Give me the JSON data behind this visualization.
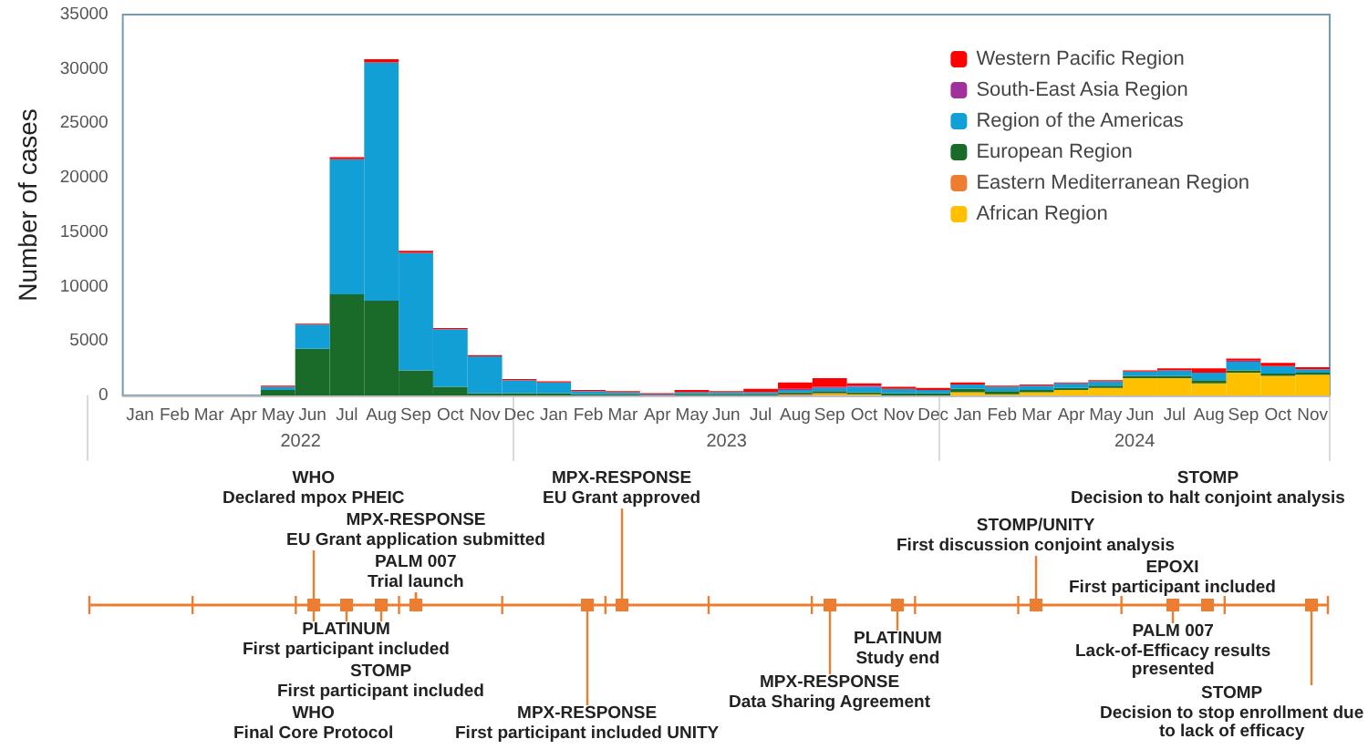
{
  "chart_data": {
    "type": "bar",
    "ylabel": "Number of cases",
    "stacked": true,
    "legend": "top right",
    "categories": [
      "Jan",
      "Feb",
      "Mar",
      "Apr",
      "May",
      "Jun",
      "Jul",
      "Aug",
      "Sep",
      "Oct",
      "Nov",
      "Dec",
      "Jan",
      "Feb",
      "Mar",
      "Apr",
      "May",
      "Jun",
      "Jul",
      "Aug",
      "Sep",
      "Oct",
      "Nov",
      "Dec",
      "Jan",
      "Feb",
      "Mar",
      "Apr",
      "May",
      "Jun",
      "Jul",
      "Aug",
      "Sep",
      "Oct",
      "Nov"
    ],
    "ylim": [
      0,
      35000
    ],
    "yticks": [
      0,
      5000,
      10000,
      15000,
      20000,
      25000,
      30000,
      35000
    ],
    "series": [
      {
        "name": "African Region",
        "color": "#ffc000",
        "values": [
          0,
          0,
          0,
          0,
          0,
          0,
          0,
          0,
          0,
          0,
          0,
          0,
          0,
          0,
          0,
          0,
          0,
          0,
          0,
          0,
          100,
          100,
          0,
          0,
          300,
          100,
          300,
          500,
          700,
          1600,
          1600,
          1100,
          2100,
          1800,
          1900
        ]
      },
      {
        "name": "Eastern Mediterranean Region",
        "color": "#ed7d31",
        "values": [
          0,
          0,
          0,
          0,
          0,
          0,
          0,
          0,
          0,
          0,
          0,
          0,
          0,
          0,
          0,
          0,
          0,
          0,
          0,
          100,
          100,
          0,
          0,
          0,
          0,
          0,
          0,
          0,
          0,
          0,
          0,
          0,
          0,
          0,
          0
        ]
      },
      {
        "name": "European Region",
        "color": "#1a6b2a",
        "values": [
          0,
          0,
          0,
          0,
          500,
          4300,
          9300,
          8700,
          2300,
          800,
          200,
          200,
          200,
          100,
          100,
          0,
          100,
          100,
          100,
          200,
          200,
          200,
          200,
          200,
          300,
          300,
          200,
          200,
          200,
          200,
          200,
          300,
          200,
          200,
          200
        ]
      },
      {
        "name": "Region of the Americas",
        "color": "#129fd6",
        "values": [
          0,
          0,
          0,
          0,
          300,
          2200,
          12400,
          21900,
          10800,
          5300,
          3400,
          1200,
          1000,
          300,
          200,
          100,
          200,
          200,
          200,
          200,
          300,
          500,
          400,
          300,
          400,
          400,
          400,
          400,
          400,
          400,
          500,
          700,
          800,
          700,
          300
        ]
      },
      {
        "name": "South-East Asia Region",
        "color": "#a0309c",
        "values": [
          0,
          0,
          0,
          0,
          0,
          0,
          0,
          0,
          0,
          0,
          0,
          0,
          0,
          0,
          0,
          0,
          0,
          0,
          0,
          100,
          100,
          100,
          0,
          0,
          0,
          0,
          0,
          0,
          0,
          0,
          0,
          0,
          100,
          0,
          0
        ]
      },
      {
        "name": "Western Pacific Region",
        "color": "#ff0000",
        "values": [
          0,
          0,
          0,
          0,
          100,
          100,
          200,
          300,
          200,
          100,
          100,
          100,
          100,
          100,
          100,
          100,
          200,
          100,
          300,
          600,
          800,
          200,
          200,
          200,
          200,
          100,
          100,
          100,
          100,
          100,
          200,
          400,
          200,
          300,
          200
        ]
      }
    ],
    "annotations": [
      "2022",
      "2023",
      "2024",
      "WHO\nDeclared mpox PHEIC",
      "MPX-RESPONSE\nEU Grant application submitted",
      "PALM 007\nTrial launch",
      "MPX-RESPONSE\nEU Grant approved",
      "STOMP/UNITY\nFirst discussion conjoint analysis",
      "STOMP\nDecision to halt conjoint analysis",
      "EPOXI\nFirst participant included",
      "PLATINUM\nFirst participant included",
      "STOMP\nFirst participant included",
      "WHO\nFinal Core Protocol",
      "MPX-RESPONSE\nFirst participant included UNITY",
      "PLATINUM\nStudy end",
      "MPX-RESPONSE\nData Sharing Agreement",
      "PALM 007\nLack-of-Efficacy results\npresented",
      "STOMP\nDecision to stop enrollment due\nto lack of efficacy"
    ]
  }
}
